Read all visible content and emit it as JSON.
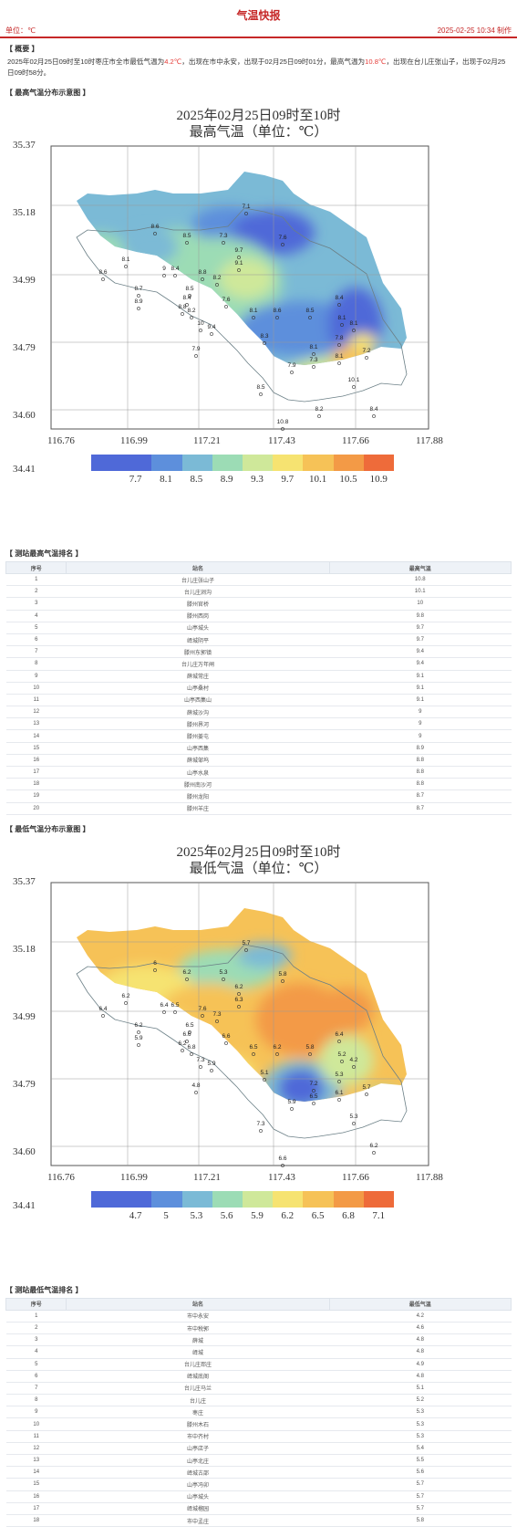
{
  "header": {
    "title": "气温快报",
    "unit": "单位：℃",
    "time": "2025-02-25 10:34 制作"
  },
  "summary": {
    "heading": "【 概要 】",
    "p1": "2025年02月25日09时至10时枣庄市全市最低气温为",
    "min_val": "4.2℃",
    "p2": "，出现在市中永安，出现于02月25日09时01分，最高气温为",
    "max_val": "10.8℃",
    "p3": "，出现在台儿庄张山子，出现于02月25日09时58分。"
  },
  "max_map": {
    "section": "【 最高气温分布示意图 】",
    "title_line1": "2025年02月25日09时至10时",
    "title_line2": "最高气温（单位：℃）",
    "yticks": [
      "35.37",
      "35.18",
      "34.99",
      "34.79",
      "34.60",
      "34.41"
    ],
    "xticks": [
      "116.76",
      "116.99",
      "117.21",
      "117.43",
      "117.66",
      "117.88"
    ],
    "legend_labels": [
      "7.7",
      "8.1",
      "8.5",
      "8.9",
      "9.3",
      "9.7",
      "10.1",
      "10.5",
      "10.9"
    ],
    "legend_colors": [
      "#4f69d8",
      "#5d8fdc",
      "#7bbad6",
      "#9cdcb5",
      "#cfe89a",
      "#f6e371",
      "#f6c257",
      "#f39a46",
      "#ee6b3a"
    ],
    "stations": [
      {
        "v": "7.1"
      },
      {
        "v": "7.3"
      },
      {
        "v": "7.6"
      },
      {
        "v": "8.6"
      },
      {
        "v": "8.5"
      },
      {
        "v": "8.1"
      },
      {
        "v": "8.6"
      },
      {
        "v": "9.7"
      },
      {
        "v": "9.1"
      },
      {
        "v": "9"
      },
      {
        "v": "8.4"
      },
      {
        "v": "8.8"
      },
      {
        "v": "8.7"
      },
      {
        "v": "8.5"
      },
      {
        "v": "8.4"
      },
      {
        "v": "8.2"
      },
      {
        "v": "8.9"
      },
      {
        "v": "8.8"
      },
      {
        "v": "8.2"
      },
      {
        "v": "7.6"
      },
      {
        "v": "8.1"
      },
      {
        "v": "8.6"
      },
      {
        "v": "10"
      },
      {
        "v": "9.4"
      },
      {
        "v": "8.5"
      },
      {
        "v": "8.1"
      },
      {
        "v": "8.4"
      },
      {
        "v": "8.1"
      },
      {
        "v": "7.8"
      },
      {
        "v": "7.2"
      },
      {
        "v": "8.1"
      },
      {
        "v": "7.3"
      },
      {
        "v": "8.1"
      },
      {
        "v": "7.9"
      },
      {
        "v": "8.3"
      },
      {
        "v": "7.9"
      },
      {
        "v": "10.1"
      },
      {
        "v": "8.5"
      },
      {
        "v": "8.4"
      },
      {
        "v": "10.8"
      },
      {
        "v": "8.2"
      }
    ]
  },
  "max_table": {
    "section": "【 测站最高气温排名 】",
    "cols": [
      "序号",
      "站名",
      "最高气温"
    ],
    "rows": [
      [
        "1",
        "台儿庄张山子",
        "10.8"
      ],
      [
        "2",
        "台儿庄涧沟",
        "10.1"
      ],
      [
        "3",
        "滕州官桥",
        "10"
      ],
      [
        "4",
        "滕州西岗",
        "9.8"
      ],
      [
        "5",
        "山亭城头",
        "9.7"
      ],
      [
        "6",
        "峄城阴平",
        "9.7"
      ],
      [
        "7",
        "滕州东郭镇",
        "9.4"
      ],
      [
        "8",
        "台儿庄万年闸",
        "9.4"
      ],
      [
        "9",
        "薛城常庄",
        "9.1"
      ],
      [
        "10",
        "山亭桑村",
        "9.1"
      ],
      [
        "11",
        "山亭西集山",
        "9.1"
      ],
      [
        "12",
        "薛城沙沟",
        "9"
      ],
      [
        "13",
        "滕州界河",
        "9"
      ],
      [
        "14",
        "滕州姜屯",
        "9"
      ],
      [
        "15",
        "山亭西集",
        "8.9"
      ],
      [
        "16",
        "薛城邹坞",
        "8.8"
      ],
      [
        "17",
        "山亭水泉",
        "8.8"
      ],
      [
        "18",
        "滕州南沙河",
        "8.8"
      ],
      [
        "19",
        "滕州龙阳",
        "8.7"
      ],
      [
        "20",
        "滕州羊庄",
        "8.7"
      ]
    ]
  },
  "min_map": {
    "section": "【 最低气温分布示意图 】",
    "title_line1": "2025年02月25日09时至10时",
    "title_line2": "最低气温（单位：℃）",
    "yticks": [
      "35.37",
      "35.18",
      "34.99",
      "34.79",
      "34.60",
      "34.41"
    ],
    "xticks": [
      "116.76",
      "116.99",
      "117.21",
      "117.43",
      "117.66",
      "117.88"
    ],
    "legend_labels": [
      "4.7",
      "5",
      "5.3",
      "5.6",
      "5.9",
      "6.2",
      "6.5",
      "6.8",
      "7.1"
    ],
    "legend_colors": [
      "#4f69d8",
      "#5d8fdc",
      "#7bbad6",
      "#9cdcb5",
      "#cfe89a",
      "#f6e371",
      "#f6c257",
      "#f39a46",
      "#ee6b3a"
    ],
    "stations": [
      {
        "v": "5.7"
      },
      {
        "v": "5.3"
      },
      {
        "v": "5.8"
      },
      {
        "v": "6"
      },
      {
        "v": "6.2"
      },
      {
        "v": "6.2"
      },
      {
        "v": "6.4"
      },
      {
        "v": "6.2"
      },
      {
        "v": "6.3"
      },
      {
        "v": "6.4"
      },
      {
        "v": "6.5"
      },
      {
        "v": "7.6"
      },
      {
        "v": "6.2"
      },
      {
        "v": "6.5"
      },
      {
        "v": "6.6"
      },
      {
        "v": "7.3"
      },
      {
        "v": "5.9"
      },
      {
        "v": "6.2"
      },
      {
        "v": "6.8"
      },
      {
        "v": "6.6"
      },
      {
        "v": "6.5"
      },
      {
        "v": "6.2"
      },
      {
        "v": "7.3"
      },
      {
        "v": "5.9"
      },
      {
        "v": "5.8"
      },
      {
        "v": "5.2"
      },
      {
        "v": "6.4"
      },
      {
        "v": "4.2"
      },
      {
        "v": "5.3"
      },
      {
        "v": "5.7"
      },
      {
        "v": "7.2"
      },
      {
        "v": "6.5"
      },
      {
        "v": "6.1"
      },
      {
        "v": "5.9"
      },
      {
        "v": "5.1"
      },
      {
        "v": "4.8"
      },
      {
        "v": "5.3"
      },
      {
        "v": "7.3"
      },
      {
        "v": "6.2"
      },
      {
        "v": "6.6"
      }
    ]
  },
  "min_table": {
    "section": "【 测站最低气温排名 】",
    "cols": [
      "序号",
      "站名",
      "最低气温"
    ],
    "rows": [
      [
        "1",
        "市中永安",
        "4.2"
      ],
      [
        "2",
        "市中税郭",
        "4.6"
      ],
      [
        "3",
        "薛城",
        "4.8"
      ],
      [
        "4",
        "峄城",
        "4.8"
      ],
      [
        "5",
        "台儿庄邳庄",
        "4.9"
      ],
      [
        "6",
        "峄城底阁",
        "4.8"
      ],
      [
        "7",
        "台儿庄马兰",
        "5.1"
      ],
      [
        "8",
        "台儿庄",
        "5.2"
      ],
      [
        "9",
        "枣庄",
        "5.3"
      ],
      [
        "10",
        "滕州木石",
        "5.3"
      ],
      [
        "11",
        "市中齐村",
        "5.3"
      ],
      [
        "12",
        "山亭店子",
        "5.4"
      ],
      [
        "13",
        "山亭北庄",
        "5.5"
      ],
      [
        "14",
        "峄城古邵",
        "5.6"
      ],
      [
        "15",
        "山亭冯卯",
        "5.7"
      ],
      [
        "16",
        "山亭城头",
        "5.7"
      ],
      [
        "17",
        "峄城榴园",
        "5.7"
      ],
      [
        "18",
        "市中孟庄",
        "5.8"
      ]
    ]
  }
}
